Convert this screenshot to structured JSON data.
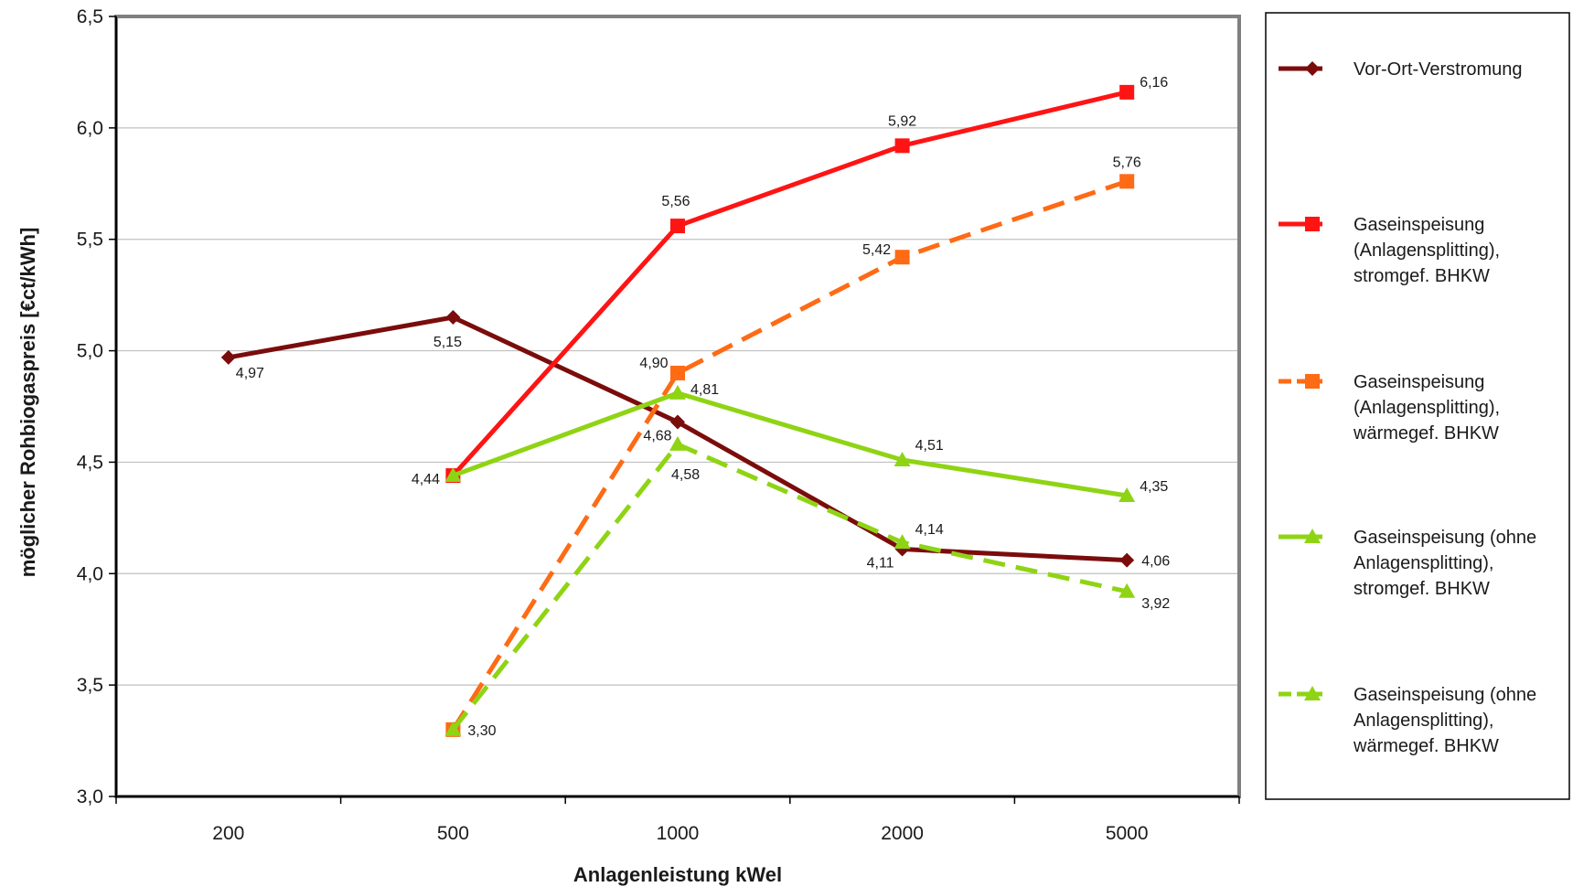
{
  "chart_data": {
    "type": "line",
    "xlabel": "Anlagenleistung kWel",
    "ylabel": "möglicher Rohbiogaspreis [€ct/kWh]",
    "categories": [
      "200",
      "500",
      "1000",
      "2000",
      "5000"
    ],
    "ylim": [
      3.0,
      6.5
    ],
    "yticks": [
      3.0,
      3.5,
      4.0,
      4.5,
      5.0,
      5.5,
      6.0,
      6.5
    ],
    "yticks_labels": [
      "3,0",
      "3,5",
      "4,0",
      "4,5",
      "5,0",
      "5,5",
      "6,0",
      "6,5"
    ],
    "grid": true,
    "legend_position": "right",
    "series": [
      {
        "name": "Vor-Ort-Verstromung",
        "name_lines": [
          "Vor-Ort-Verstromung"
        ],
        "color": "#7b0c0c",
        "dash": "solid",
        "marker": "diamond",
        "values": [
          4.97,
          5.15,
          4.68,
          4.11,
          4.06
        ],
        "labels": [
          "4,97",
          "5,15",
          "4,68",
          "4,11",
          "4,06"
        ]
      },
      {
        "name": "Gaseinspeisung (Anlagensplitting), stromgef. BHKW",
        "name_lines": [
          "Gaseinspeisung",
          "(Anlagensplitting),",
          "stromgef. BHKW"
        ],
        "color": "#ff1414",
        "dash": "solid",
        "marker": "square",
        "values": [
          null,
          4.44,
          5.56,
          5.92,
          6.16
        ],
        "labels": [
          "",
          "4,44",
          "5,56",
          "5,92",
          "6,16"
        ]
      },
      {
        "name": "Gaseinspeisung (Anlagensplitting), wärmegef. BHKW",
        "name_lines": [
          "Gaseinspeisung",
          "(Anlagensplitting),",
          "wärmegef. BHKW"
        ],
        "color": "#ff6a14",
        "dash": "dashed",
        "marker": "square",
        "values": [
          null,
          3.3,
          4.9,
          5.42,
          5.76
        ],
        "labels": [
          "",
          "",
          "4,90",
          "5,42",
          "5,76"
        ]
      },
      {
        "name": "Gaseinspeisung (ohne Anlagensplitting), stromgef. BHKW",
        "name_lines": [
          "Gaseinspeisung (ohne",
          "Anlagensplitting),",
          "stromgef. BHKW"
        ],
        "color": "#8fd414",
        "dash": "solid",
        "marker": "triangle",
        "values": [
          null,
          4.44,
          4.81,
          4.51,
          4.35
        ],
        "labels": [
          "",
          "",
          "4,81",
          "4,51",
          "4,35"
        ]
      },
      {
        "name": "Gaseinspeisung (ohne Anlagensplitting), wärmegef. BHKW",
        "name_lines": [
          "Gaseinspeisung (ohne",
          "Anlagensplitting),",
          "wärmegef. BHKW"
        ],
        "color": "#8fd414",
        "dash": "dashed",
        "marker": "triangle",
        "values": [
          null,
          3.3,
          4.58,
          4.14,
          3.92
        ],
        "labels": [
          "",
          "3,30",
          "4,58",
          "4,14",
          "3,92"
        ]
      }
    ]
  }
}
